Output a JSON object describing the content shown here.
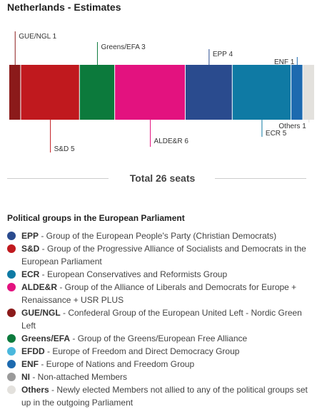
{
  "title": "Netherlands - Estimates",
  "chart_data": {
    "type": "bar",
    "chart_subtype": "stacked-horizontal-seat-bar",
    "total_seats": 26,
    "segments": [
      {
        "label": "GUE/NGL",
        "seats": 1,
        "color": "#8b1a1a",
        "label_position": "above"
      },
      {
        "label": "S&D",
        "seats": 5,
        "color": "#c0191e",
        "label_position": "below"
      },
      {
        "label": "Greens/EFA",
        "seats": 3,
        "color": "#0c7a3c",
        "label_position": "above"
      },
      {
        "label": "ALDE&R",
        "seats": 6,
        "color": "#e3127f",
        "label_position": "below"
      },
      {
        "label": "EPP",
        "seats": 4,
        "color": "#2a4b8e",
        "label_position": "above"
      },
      {
        "label": "ECR",
        "seats": 5,
        "color": "#0f7aa4",
        "label_position": "below"
      },
      {
        "label": "ENF",
        "seats": 1,
        "color": "#1d6aaf",
        "label_position": "above"
      },
      {
        "label": "Others",
        "seats": 1,
        "color": "#e3e1dd",
        "label_position": "below"
      }
    ]
  },
  "total_label": "Total 26 seats",
  "legend": {
    "title": "Political groups in the European Parliament",
    "items": [
      {
        "abbr": "EPP",
        "desc": " - Group of the European People's Party (Christian Democrats)",
        "color": "#2a4b8e"
      },
      {
        "abbr": "S&D",
        "desc": " - Group of the Progressive Alliance of Socialists and Democrats in the European Parliament",
        "color": "#c0191e"
      },
      {
        "abbr": "ECR",
        "desc": " - European Conservatives and Reformists Group",
        "color": "#0f7aa4"
      },
      {
        "abbr": "ALDE&R",
        "desc": " - Group of the Alliance of Liberals and Democrats for Europe + Renaissance + USR PLUS",
        "color": "#e3127f"
      },
      {
        "abbr": "GUE/NGL",
        "desc": " - Confederal Group of the European United Left - Nordic Green Left",
        "color": "#8b1a1a"
      },
      {
        "abbr": "Greens/EFA",
        "desc": " - Group of the Greens/European Free Alliance",
        "color": "#0c7a3c"
      },
      {
        "abbr": "EFDD",
        "desc": " - Europe of Freedom and Direct Democracy Group",
        "color": "#4ab8dd"
      },
      {
        "abbr": "ENF",
        "desc": " - Europe of Nations and Freedom Group",
        "color": "#1d6aaf"
      },
      {
        "abbr": "NI",
        "desc": " - Non-attached Members",
        "color": "#9a9a9a"
      },
      {
        "abbr": "Others",
        "desc": " - Newly elected Members not allied to any of the political groups set up in the outgoing Parliament",
        "color": "#e3e1dd"
      }
    ]
  }
}
